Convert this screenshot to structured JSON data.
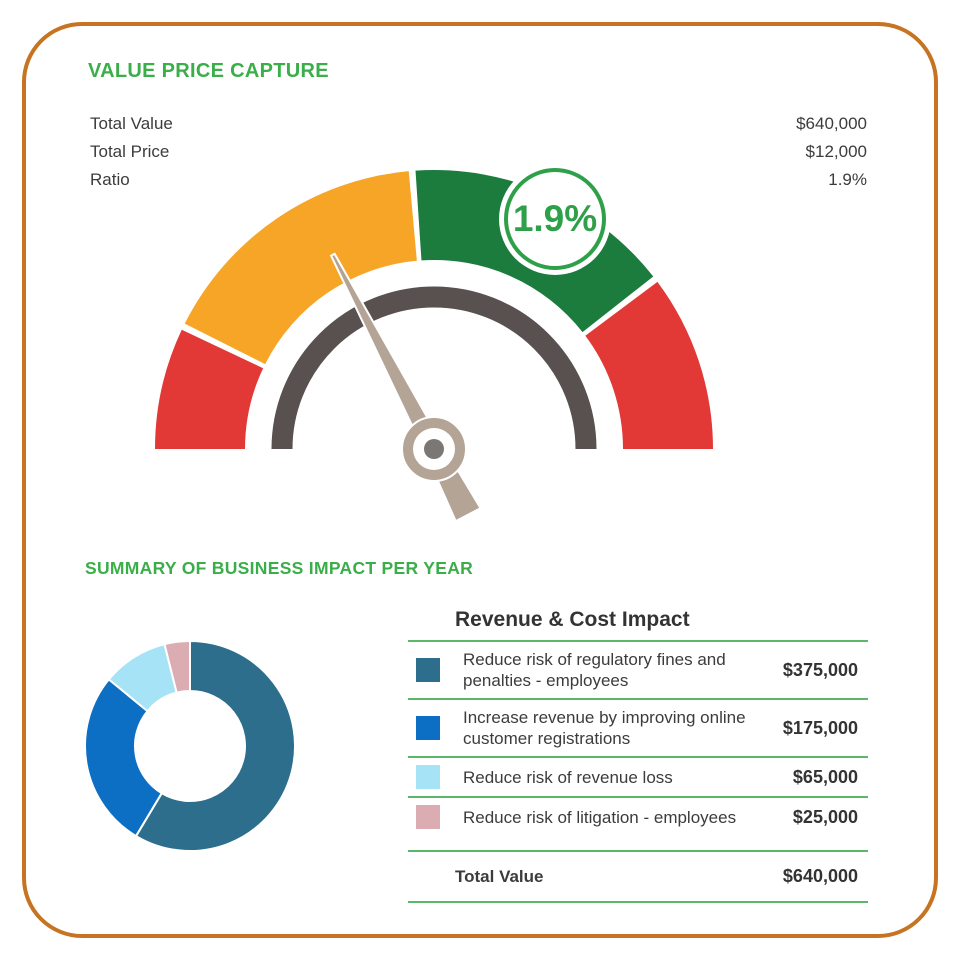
{
  "card": {
    "border_color": "#c67422"
  },
  "section1": {
    "title": "VALUE PRICE CAPTURE",
    "stats": [
      {
        "label": "Total Value",
        "value": "$640,000"
      },
      {
        "label": "Total Price",
        "value": "$12,000"
      },
      {
        "label": "Ratio",
        "value": "1.9%"
      }
    ]
  },
  "section2": {
    "title": "SUMMARY OF BUSINESS IMPACT PER YEAR"
  },
  "chart_data": [
    {
      "type": "gauge",
      "title": "VALUE PRICE CAPTURE",
      "badge_label": "1.9%",
      "value_percent": 1.9,
      "needle_angle_deg": 117.5,
      "segments": [
        {
          "name": "red-low",
          "start_deg": 180,
          "end_deg": 154,
          "color": "#e23936"
        },
        {
          "name": "orange",
          "start_deg": 154,
          "end_deg": 94.5,
          "color": "#f7a527"
        },
        {
          "name": "green",
          "start_deg": 94.5,
          "end_deg": 37.5,
          "color": "#1b7c3e"
        },
        {
          "name": "red-high",
          "start_deg": 37.5,
          "end_deg": 0,
          "color": "#e23936"
        }
      ],
      "arc_color": "#585150",
      "needle_color": "#b4a496",
      "hub_dot_color": "#7a7774"
    },
    {
      "type": "pie",
      "subtype": "donut",
      "title": "Revenue & Cost Impact",
      "labels": [
        "Reduce risk of regulatory fines and penalties - employees",
        "Increase revenue by improving online customer registrations",
        "Reduce risk of revenue loss",
        "Reduce risk of litigation - employees"
      ],
      "values": [
        375000,
        175000,
        65000,
        25000
      ],
      "colors": [
        "#2d6e8d",
        "#0d6fc4",
        "#a7e3f6",
        "#dbacb1"
      ],
      "total": 640000,
      "start_angle": "top",
      "direction": "clockwise"
    }
  ],
  "table": {
    "title": "Revenue & Cost Impact",
    "rows": [
      {
        "label": "Reduce risk of regulatory fines and penalties - employees",
        "value": "$375,000"
      },
      {
        "label": "Increase revenue by improving online customer registrations",
        "value": "$175,000"
      },
      {
        "label": "Reduce risk of revenue loss",
        "value": "$65,000"
      },
      {
        "label": "Reduce risk of litigation - employees",
        "value": "$25,000"
      }
    ],
    "total_label": "Total Value",
    "total_value": "$640,000"
  }
}
